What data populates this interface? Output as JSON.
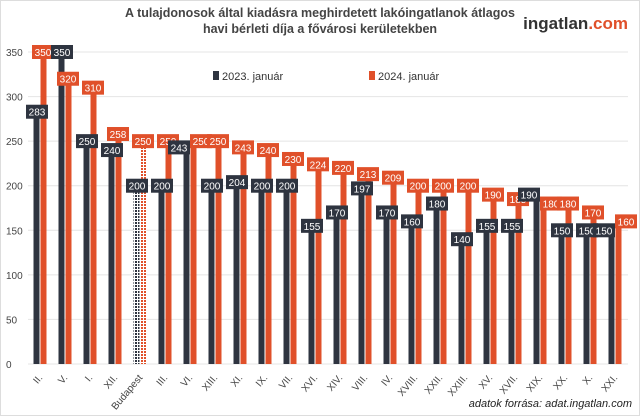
{
  "chart_data": {
    "type": "bar",
    "title": "A tulajdonosok által kiadásra meghirdetett lakóingatlanok átlagos havi bérleti díja a fővárosi kerületekben",
    "categories": [
      "II.",
      "V.",
      "I.",
      "XII.",
      "Budapest",
      "III.",
      "VI.",
      "XIII.",
      "XI.",
      "IX.",
      "VII.",
      "XVI.",
      "XIV.",
      "VIII.",
      "IV.",
      "XVIII.",
      "XXII.",
      "XXIII.",
      "XV.",
      "XVII.",
      "XIX.",
      "XX.",
      "X.",
      "XXI."
    ],
    "series": [
      {
        "name": "2023. január",
        "color": "#2e3440",
        "values": [
          283,
          350,
          250,
          240,
          200,
          200,
          243,
          200,
          204,
          200,
          200,
          155,
          170,
          197,
          170,
          160,
          180,
          140,
          155,
          155,
          190,
          150,
          150,
          150
        ]
      },
      {
        "name": "2024. január",
        "color": "#e0502a",
        "values": [
          350,
          320,
          310,
          258,
          250,
          250,
          250,
          250,
          243,
          240,
          230,
          224,
          220,
          213,
          209,
          200,
          200,
          200,
          190,
          185,
          180,
          180,
          170,
          160
        ]
      }
    ],
    "highlight_category": "Budapest",
    "ylim": [
      0,
      370
    ],
    "yticks": [
      0,
      50,
      100,
      150,
      200,
      250,
      300,
      350
    ],
    "grid": true,
    "legend": "top-center",
    "xlabel": "",
    "ylabel": ""
  },
  "logo": {
    "main": "ingatlan",
    "suffix": ".com"
  },
  "source": "adatok forrása: adat.ingatlan.com"
}
